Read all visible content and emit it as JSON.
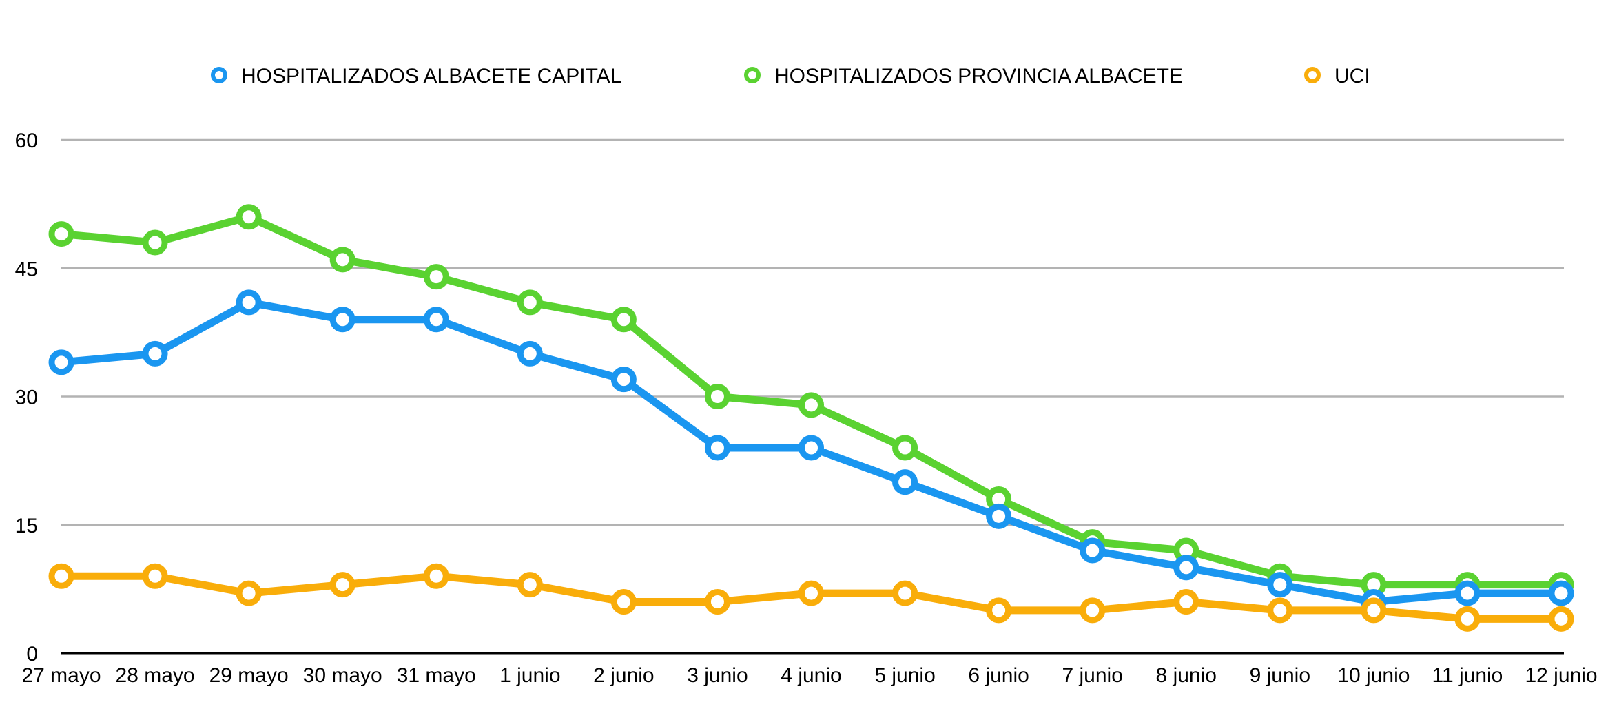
{
  "chart_data": {
    "type": "line",
    "title": "",
    "xlabel": "",
    "ylabel": "",
    "x": [
      "27 mayo",
      "28 mayo",
      "29 mayo",
      "30 mayo",
      "31 mayo",
      "1 junio",
      "2 junio",
      "3 junio",
      "4 junio",
      "5 junio",
      "6 junio",
      "7 junio",
      "8 junio",
      "9 junio",
      "10 junio",
      "11 junio",
      "12 junio"
    ],
    "ylim": [
      0,
      60
    ],
    "yticks": [
      0,
      15,
      30,
      45,
      60
    ],
    "grid": true,
    "legend_position": "top",
    "series": [
      {
        "name": "HOSPITALIZADOS ALBACETE CAPITAL",
        "color": "#1a96f0",
        "values": [
          34,
          35,
          41,
          39,
          39,
          35,
          32,
          24,
          24,
          20,
          16,
          12,
          10,
          8,
          6,
          7,
          7
        ]
      },
      {
        "name": "HOSPITALIZADOS PROVINCIA ALBACETE",
        "color": "#5ad231",
        "values": [
          49,
          48,
          51,
          46,
          44,
          41,
          39,
          30,
          29,
          24,
          18,
          13,
          12,
          9,
          8,
          8,
          8
        ]
      },
      {
        "name": "UCI",
        "color": "#f9ad0a",
        "values": [
          9,
          9,
          7,
          8,
          9,
          8,
          6,
          6,
          7,
          7,
          5,
          5,
          6,
          5,
          5,
          4,
          4
        ]
      }
    ]
  }
}
